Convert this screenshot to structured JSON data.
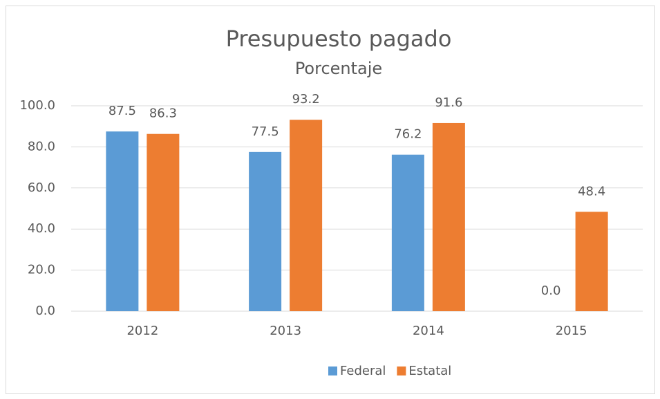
{
  "chart_data": {
    "type": "bar",
    "title": "Presupuesto pagado",
    "subtitle": "Porcentaje",
    "categories": [
      "2012",
      "2013",
      "2014",
      "2015"
    ],
    "series": [
      {
        "name": "Federal",
        "color": "#5b9bd5",
        "values": [
          87.5,
          77.5,
          76.2,
          0
        ],
        "value_labels": [
          "87.5",
          "77.5",
          "76.2",
          "0.0"
        ]
      },
      {
        "name": "Estatal",
        "color": "#ed7d31",
        "values": [
          86.3,
          93.2,
          91.6,
          48.4
        ]
      }
    ],
    "ylim": [
      0,
      100
    ],
    "yticks": [
      {
        "value": 0,
        "label": "0.0"
      },
      {
        "value": 20,
        "label": "20.0"
      },
      {
        "value": 40,
        "label": "40.0"
      },
      {
        "value": 60,
        "label": "60.0"
      },
      {
        "value": 80,
        "label": "80.0"
      },
      {
        "value": 100,
        "label": "100.0"
      }
    ],
    "grid": true,
    "legend": "bottom"
  }
}
